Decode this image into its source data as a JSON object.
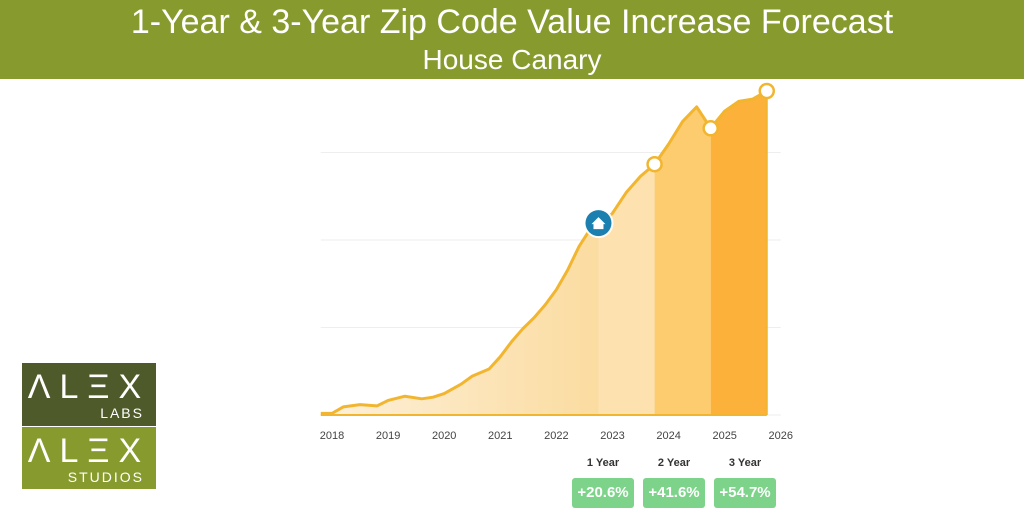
{
  "header": {
    "title": "1-Year & 3-Year Zip Code Value Increase Forecast",
    "subtitle": "House Canary"
  },
  "colors": {
    "header_bg": "#879a2d",
    "line": "#f2b530",
    "marker": "#1b7fb0",
    "badge": "#7dd38a",
    "logo_dark": "#4f5a2a",
    "logo_light": "#879a2d"
  },
  "chart_data": {
    "type": "area",
    "title": "",
    "xlabel": "",
    "ylabel": "",
    "x_ticks": [
      "2018",
      "2019",
      "2020",
      "2021",
      "2022",
      "2023",
      "2024",
      "2025",
      "2026"
    ],
    "xlim": [
      2017.8,
      2026
    ],
    "ylim": [
      0,
      100
    ],
    "grid": true,
    "current_marker": {
      "x": 2022.75,
      "icon": "home-icon"
    },
    "forecast_points": [
      2023.75,
      2024.75,
      2025.75
    ],
    "series": [
      {
        "x": [
          2017.8,
          2018.0,
          2018.2,
          2018.5,
          2018.8,
          2019.0,
          2019.3,
          2019.6,
          2019.8,
          2020.0,
          2020.3,
          2020.5,
          2020.8,
          2021.0,
          2021.2,
          2021.4,
          2021.6,
          2021.8,
          2022.0,
          2022.2,
          2022.4,
          2022.6,
          2022.75,
          2023.0,
          2023.25,
          2023.5,
          2023.75,
          2024.0,
          2024.25,
          2024.5,
          2024.75,
          2025.0,
          2025.25,
          2025.5,
          2025.75
        ],
        "y": [
          0.5,
          0.5,
          2.5,
          3.2,
          2.8,
          4.5,
          5.8,
          5.0,
          5.5,
          6.6,
          9.5,
          12.0,
          14.2,
          18.0,
          22.6,
          26.6,
          30.0,
          34.0,
          38.7,
          44.7,
          51.9,
          57.3,
          58.0,
          62.3,
          68.8,
          73.7,
          77.4,
          83.6,
          90.6,
          95.1,
          88.5,
          93.8,
          96.8,
          97.5,
          100
        ]
      }
    ]
  },
  "forecast": {
    "items": [
      {
        "label": "1 Year",
        "value": "+20.6%"
      },
      {
        "label": "2 Year",
        "value": "+41.6%"
      },
      {
        "label": "3 Year",
        "value": "+54.7%"
      }
    ]
  },
  "logo": {
    "top_big": "ΛLΞX",
    "top_small": "LABS",
    "bottom_big": "ΛLΞX",
    "bottom_small": "STUDIOS"
  }
}
